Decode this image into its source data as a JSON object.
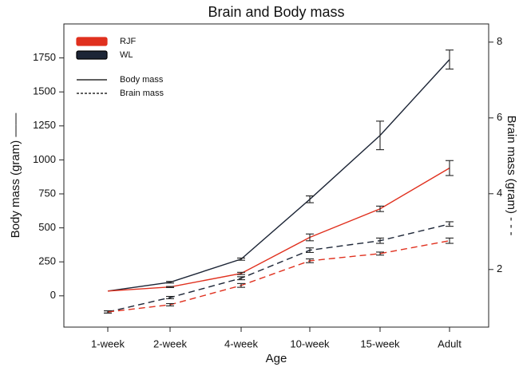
{
  "chart_data": {
    "type": "line",
    "title": "Brain and Body mass",
    "x_label": "Age",
    "y_label": "Body mass (gram) ——",
    "y2_label": "Brain mass (gram) - - -",
    "categories": [
      "1-week",
      "2-week",
      "4-week",
      "10-week",
      "15-week",
      "Adult"
    ],
    "ylim": [
      -230,
      2000
    ],
    "yticks": [
      0,
      250,
      500,
      750,
      1000,
      1250,
      1500,
      1750
    ],
    "y2lim": [
      0.48,
      8.48
    ],
    "y2ticks": [
      2,
      4,
      6,
      8
    ],
    "legend": {
      "groups": [
        {
          "name": "RJF",
          "color": "#e0301e"
        },
        {
          "name": "WL",
          "color": "#1c2536"
        }
      ],
      "styles": [
        {
          "name": "Body mass",
          "dash": "solid"
        },
        {
          "name": "Brain mass",
          "dash": "dashed"
        }
      ]
    },
    "series": [
      {
        "group": 1,
        "style": 0,
        "axis": "y",
        "values": [
          35,
          100,
          270,
          710,
          1180,
          1738
        ],
        "errors": [
          null,
          6,
          8,
          25,
          105,
          70
        ]
      },
      {
        "group": 0,
        "style": 0,
        "axis": "y",
        "values": [
          35,
          65,
          165,
          430,
          640,
          940
        ],
        "errors": [
          null,
          4,
          8,
          25,
          20,
          55
        ]
      },
      {
        "group": 1,
        "style": 1,
        "axis": "y2",
        "values": [
          0.88,
          1.26,
          1.77,
          2.51,
          2.76,
          3.2
        ],
        "errors": [
          0.03,
          0.03,
          0.04,
          0.06,
          0.07,
          0.06
        ]
      },
      {
        "group": 0,
        "style": 1,
        "axis": "y2",
        "values": [
          0.88,
          1.07,
          1.58,
          2.23,
          2.42,
          2.76
        ],
        "errors": [
          0.03,
          0.03,
          0.05,
          0.05,
          0.04,
          0.07
        ]
      }
    ]
  }
}
